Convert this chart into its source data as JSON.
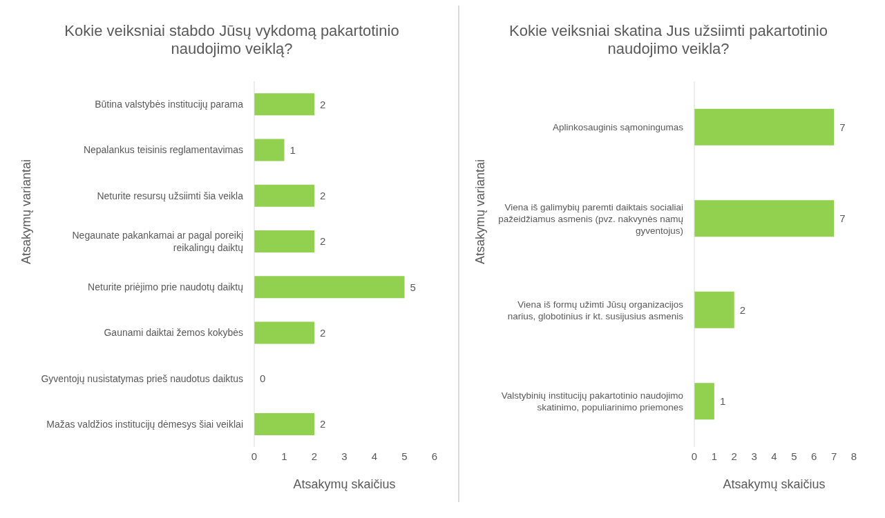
{
  "chart_data": [
    {
      "type": "bar",
      "orientation": "horizontal",
      "title": "Kokie veiksniai stabdo Jūsų vykdomą pakartotinio naudojimo veiklą?",
      "xlabel": "Atsakymų skaičius",
      "ylabel": "Atsakymų variantai",
      "categories": [
        "Būtina valstybės institucijų parama",
        "Nepalankus teisinis reglamentavimas",
        "Neturite resursų užsiimti šia veikla",
        "Negaunate pakankamai ar pagal poreikį reikalingų daiktų",
        "Neturite priėjimo prie naudotų daiktų",
        "Gaunami daiktai žemos kokybės",
        "Gyventojų nusistatymas prieš naudotus daiktus",
        "Mažas valdžios institucijų dėmesys šiai veiklai"
      ],
      "values": [
        2,
        1,
        2,
        2,
        5,
        2,
        0,
        2
      ],
      "color": "#92d050",
      "xlim": [
        0,
        6
      ],
      "xticks": [
        0,
        1,
        2,
        3,
        4,
        5,
        6
      ],
      "grid": false,
      "legend": false,
      "data_labels": true
    },
    {
      "type": "bar",
      "orientation": "horizontal",
      "title": "Kokie veiksniai skatina Jus užsiimti pakartotinio naudojimo veikla?",
      "xlabel": "Atsakymų skaičius",
      "ylabel": "Atsakymų variantai",
      "categories": [
        "Aplinkosauginis sąmoningumas",
        "Viena iš galimybių paremti daiktais socialiai pažeidžiamus asmenis (pvz. nakvynės namų gyventojus)",
        "Viena iš formų užimti Jūsų organizacijos narius, globotinius ir kt. susijusius asmenis",
        "Valstybinių institucijų pakartotinio naudojimo skatinimo, populiarinimo priemones"
      ],
      "values": [
        7,
        7,
        2,
        1
      ],
      "color": "#92d050",
      "xlim": [
        0,
        8
      ],
      "xticks": [
        0,
        1,
        2,
        3,
        4,
        5,
        6,
        7,
        8
      ],
      "grid": false,
      "legend": false,
      "data_labels": true
    }
  ]
}
